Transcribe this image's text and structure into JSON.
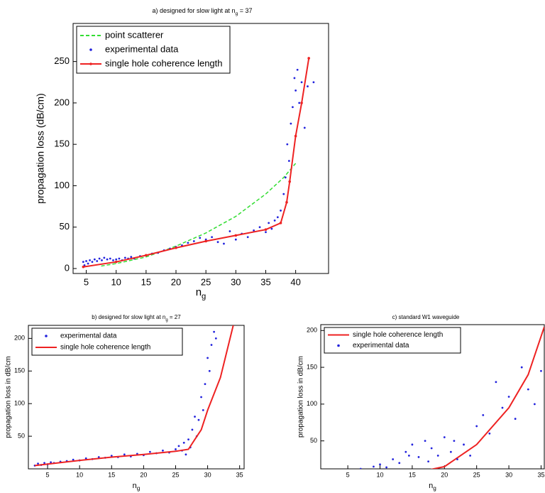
{
  "chart_data": [
    {
      "type": "line",
      "title": [
        "a) designed for slow light at n",
        "g",
        " = 37"
      ],
      "x_label": [
        "n",
        "g"
      ],
      "y_label": "propagation loss (dB/cm)",
      "xlim": [
        2.8,
        45.5
      ],
      "xticks": [
        5,
        10,
        15,
        20,
        25,
        30,
        35,
        40
      ],
      "ylim": [
        -6,
        296
      ],
      "yticks": [
        0,
        50,
        100,
        150,
        200,
        250
      ],
      "grid": false,
      "legend": "upper left",
      "series": [
        {
          "name": "point scatterer",
          "color": "#33dd33",
          "mode": "dashed-line",
          "x": [
            7.5,
            10,
            15,
            20,
            25,
            30,
            35,
            38,
            40
          ],
          "values": [
            3,
            6,
            14,
            27,
            43,
            63,
            90,
            110,
            127
          ]
        },
        {
          "name": "experimental data",
          "color": "#2222dd",
          "mode": "markers",
          "x": [
            4.5,
            4.7,
            5,
            5.3,
            5.6,
            6,
            6.4,
            6.8,
            7.2,
            7.6,
            8,
            8.5,
            9,
            9.5,
            10,
            10.5,
            11,
            11.5,
            12,
            12.5,
            13,
            14,
            15,
            16,
            17,
            18,
            19,
            20,
            21,
            22,
            23,
            24,
            25,
            26,
            27,
            28,
            29,
            30,
            31,
            32,
            33,
            34,
            35,
            35.5,
            36,
            36.5,
            37,
            37.5,
            38,
            38.3,
            38.6,
            38.9,
            39.2,
            39.5,
            39.8,
            40,
            40.3,
            40.6,
            41,
            41.5,
            42,
            43
          ],
          "values": [
            8,
            4,
            9,
            6,
            10,
            8,
            11,
            9,
            12,
            10,
            13,
            11,
            12,
            10,
            11,
            12,
            10,
            13,
            12,
            14,
            12,
            15,
            16,
            18,
            19,
            22,
            24,
            26,
            28,
            31,
            33,
            37,
            35,
            38,
            32,
            30,
            45,
            35,
            42,
            38,
            46,
            50,
            44,
            55,
            48,
            58,
            62,
            70,
            90,
            110,
            150,
            130,
            175,
            195,
            230,
            215,
            240,
            200,
            225,
            170,
            220,
            225
          ]
        },
        {
          "name": "single hole coherence length",
          "color": "#ee2222",
          "mode": "line-markers",
          "x": [
            4.5,
            10,
            15,
            20,
            25,
            30,
            35,
            37.5,
            38.5,
            39,
            40,
            41,
            42.2
          ],
          "values": [
            2,
            8,
            16,
            25,
            33,
            40,
            47,
            55,
            80,
            105,
            160,
            200,
            254
          ]
        }
      ]
    },
    {
      "type": "line",
      "title": [
        "b) designed for slow light at n",
        "g",
        " = 27"
      ],
      "x_label": [
        "n",
        "g"
      ],
      "y_label": "propagation loss in dB/cm",
      "xlim": [
        2,
        35.7
      ],
      "xticks": [
        5,
        10,
        15,
        20,
        25,
        30,
        35
      ],
      "ylim": [
        0,
        220
      ],
      "yticks": [
        50,
        100,
        150,
        200
      ],
      "grid": false,
      "legend": "upper left",
      "series": [
        {
          "name": "experimental data",
          "color": "#2222dd",
          "mode": "markers",
          "x": [
            3,
            3.5,
            4,
            4.5,
            5,
            5.5,
            6,
            7,
            8,
            9,
            10,
            11,
            12,
            13,
            14,
            15,
            16,
            17,
            18,
            19,
            20,
            21,
            22,
            23,
            24,
            25,
            25.5,
            26,
            26.3,
            26.6,
            27,
            27.3,
            27.6,
            28,
            28.3,
            28.6,
            29,
            29.3,
            29.6,
            30,
            30.3,
            30.6,
            31,
            31.3
          ],
          "values": [
            5,
            8,
            6,
            9,
            7,
            10,
            9,
            11,
            12,
            14,
            13,
            16,
            15,
            18,
            17,
            20,
            18,
            22,
            19,
            23,
            21,
            26,
            24,
            28,
            25,
            30,
            35,
            28,
            40,
            22,
            45,
            33,
            60,
            80,
            50,
            75,
            110,
            90,
            130,
            170,
            150,
            190,
            210,
            200
          ]
        },
        {
          "name": "single hole coherence length",
          "color": "#ee2222",
          "mode": "line",
          "x": [
            3,
            10,
            15,
            20,
            25,
            27,
            28,
            29,
            30,
            32,
            34
          ],
          "values": [
            5,
            13,
            18,
            22,
            27,
            30,
            45,
            60,
            90,
            140,
            220
          ]
        }
      ]
    },
    {
      "type": "line",
      "title": [
        "c) standard W1 waveguide"
      ],
      "x_label": [
        "n",
        "g"
      ],
      "y_label": "propagation loss in dB/cm",
      "xlim": [
        0.8,
        35.5
      ],
      "xticks": [
        5,
        10,
        15,
        20,
        25,
        30,
        35
      ],
      "ylim": [
        12,
        208
      ],
      "yticks": [
        50,
        100,
        150,
        200
      ],
      "grid": false,
      "legend": "upper left",
      "series": [
        {
          "name": "single hole coherence length",
          "color": "#ee2222",
          "mode": "line",
          "x": [
            5,
            10,
            15,
            20,
            25,
            30,
            33,
            35.5
          ],
          "values": [
            2,
            3,
            6,
            15,
            45,
            95,
            140,
            205
          ]
        },
        {
          "name": "experimental data",
          "color": "#2222dd",
          "mode": "markers",
          "x": [
            5,
            6,
            7,
            8,
            9,
            10,
            11,
            12,
            13,
            14,
            14.5,
            15,
            16,
            17,
            17.5,
            18,
            19,
            20,
            21,
            21.5,
            22,
            23,
            24,
            25,
            26,
            27,
            28,
            29,
            30,
            31,
            32,
            33,
            34,
            35
          ],
          "values": [
            5,
            8,
            12,
            10,
            15,
            18,
            14,
            25,
            20,
            35,
            30,
            45,
            28,
            50,
            22,
            40,
            30,
            55,
            35,
            50,
            25,
            45,
            30,
            70,
            85,
            60,
            130,
            95,
            110,
            80,
            150,
            120,
            100,
            145
          ]
        }
      ]
    }
  ]
}
